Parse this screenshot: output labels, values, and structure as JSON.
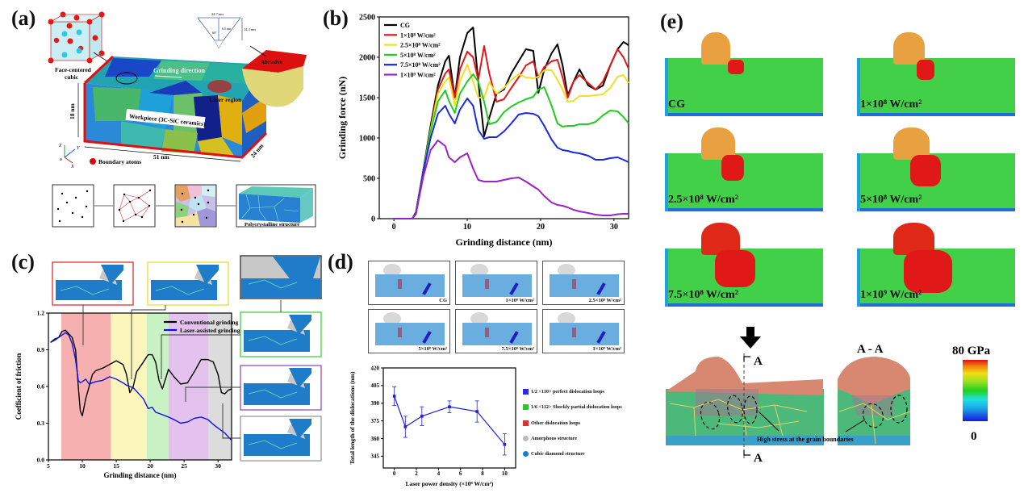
{
  "panels": {
    "a": {
      "label": "(a)",
      "fcc_label_1": "Face-centered",
      "fcc_label_2": "cubic",
      "grinding_direction": "Grinding direction",
      "laser_region": "Laser region",
      "abrasive": "Abrasive",
      "workpiece": "Workpiece (3C-SiC ceramics)",
      "dim_height": "18 nm",
      "dim_length": "51 nm",
      "dim_depth": "24 nm",
      "boundary_atoms": "Boundary atoms",
      "axes": {
        "z": "Z",
        "y": "Y",
        "x": "X",
        "o": "o"
      },
      "abrasive_dims": {
        "width": "24.7 nm",
        "height": "14.3 nm",
        "radius": "6.5 nm",
        "angle": "60°"
      },
      "polycrystalline": "Polycrystalline structure"
    },
    "b": {
      "label": "(b)"
    },
    "c": {
      "label": "(c)"
    },
    "d": {
      "label": "(d)",
      "thumbnails": [
        "CG",
        "1×10⁸ W/cm²",
        "2.5×10⁸ W/cm²",
        "5×10⁸ W/cm²",
        "7.5×10⁸ W/cm²",
        "1×10⁹ W/cm²"
      ],
      "legend": [
        {
          "label": "1/2 <110> perfect dislocation loops",
          "color": "#2a2ae0"
        },
        {
          "label": "1/6 <112> Shockly partial dislocation loops",
          "color": "#22cc22"
        },
        {
          "label": "Other dislocation loops",
          "color": "#e03030"
        },
        {
          "label": "Amorphous structure",
          "color": "#bbbbbb"
        },
        {
          "label": "Cubic diamond structure",
          "color": "#1a7fd0"
        }
      ]
    },
    "e": {
      "label": "(e)",
      "maps": [
        "CG",
        "1×10⁸ W/cm²",
        "2.5×10⁸ W/cm²",
        "5×10⁸ W/cm²",
        "7.5×10⁸ W/cm²",
        "1×10⁹ W/cm²"
      ],
      "section_label": "A",
      "section_title": "A - A",
      "annotation": "High stress at the grain boundaries",
      "colorbar_max": "80 GPa",
      "colorbar_min": "0"
    }
  },
  "chart_data": [
    {
      "id": "b",
      "type": "line",
      "title": "",
      "xlabel": "Grinding distance (nm)",
      "ylabel": "Grinding force (nN)",
      "xlim": [
        -2,
        32
      ],
      "ylim": [
        0,
        2500
      ],
      "xticks": [
        0,
        10,
        20,
        30
      ],
      "yticks": [
        0,
        500,
        1000,
        1500,
        2000,
        2500
      ],
      "legend_position": "top-left",
      "x": [
        0,
        2.5,
        3,
        4,
        5,
        6,
        7,
        7.5,
        8.3,
        9,
        10,
        10.8,
        11.5,
        12.3,
        13,
        14,
        15,
        16,
        17,
        18,
        19,
        19.7,
        20.5,
        21.5,
        22.3,
        23,
        23.7,
        24.5,
        25.3,
        26.5,
        27.5,
        28.5,
        29.5,
        30.5,
        31.3,
        32
      ],
      "series": [
        {
          "name": "CG",
          "color": "#000000",
          "values": [
            0,
            0,
            80,
            600,
            1150,
            1650,
            1950,
            2020,
            1500,
            2000,
            2300,
            2370,
            1700,
            1020,
            1250,
            1550,
            1600,
            1800,
            1950,
            2100,
            2080,
            1560,
            1850,
            2050,
            2160,
            1900,
            1530,
            1700,
            1850,
            1650,
            1600,
            1650,
            1900,
            2100,
            2190,
            2150
          ]
        },
        {
          "name": "1×10⁸ W/cm²",
          "color": "#e01818",
          "values": [
            0,
            0,
            60,
            580,
            1100,
            1600,
            1800,
            1850,
            1500,
            1850,
            2070,
            2000,
            1720,
            2140,
            1800,
            1450,
            1480,
            1620,
            1750,
            1900,
            1950,
            1750,
            1880,
            1950,
            1970,
            1750,
            1500,
            1700,
            1780,
            1680,
            1600,
            1700,
            1900,
            2100,
            2000,
            1860
          ]
        },
        {
          "name": "2.5×10⁸ W/cm²",
          "color": "#f0e020",
          "values": [
            0,
            0,
            60,
            580,
            1100,
            1550,
            1700,
            1750,
            1400,
            1700,
            1910,
            1700,
            1500,
            1500,
            1690,
            1550,
            1620,
            1720,
            1790,
            1750,
            1740,
            1760,
            1840,
            1840,
            1720,
            1600,
            1450,
            1460,
            1520,
            1520,
            1530,
            1540,
            1620,
            1760,
            1780,
            1680
          ]
        },
        {
          "name": "5×10⁸ W/cm²",
          "color": "#22cc22",
          "values": [
            0,
            0,
            60,
            580,
            1080,
            1450,
            1590,
            1460,
            1310,
            1550,
            1700,
            1790,
            1700,
            1450,
            1170,
            1200,
            1320,
            1390,
            1440,
            1480,
            1510,
            1600,
            1630,
            1400,
            1180,
            1140,
            1150,
            1150,
            1170,
            1170,
            1200,
            1280,
            1340,
            1330,
            1260,
            1180
          ]
        },
        {
          "name": "7.5×10⁸ W/cm²",
          "color": "#1a2ae0",
          "values": [
            0,
            0,
            60,
            580,
            1000,
            1300,
            1400,
            1300,
            1180,
            1350,
            1490,
            1400,
            1100,
            990,
            1010,
            1010,
            1080,
            1180,
            1290,
            1310,
            1300,
            1270,
            1150,
            980,
            880,
            850,
            840,
            820,
            810,
            780,
            730,
            730,
            750,
            760,
            730,
            700
          ]
        },
        {
          "name": "1×10⁹ W/cm²",
          "color": "#9a22c8",
          "values": [
            0,
            0,
            60,
            520,
            850,
            970,
            900,
            760,
            700,
            760,
            810,
            620,
            480,
            460,
            460,
            460,
            480,
            500,
            510,
            460,
            400,
            360,
            280,
            200,
            170,
            160,
            140,
            110,
            90,
            70,
            50,
            40,
            40,
            55,
            60,
            60
          ]
        }
      ]
    },
    {
      "id": "c",
      "type": "line",
      "title": "",
      "xlabel": "Grinding distance (nm)",
      "ylabel": "Coefficient of friction",
      "xlim": [
        5,
        32
      ],
      "ylim": [
        0.0,
        1.2
      ],
      "xticks": [
        5,
        10,
        15,
        20,
        25,
        30
      ],
      "yticks": [
        0.0,
        0.3,
        0.6,
        0.9,
        1.2
      ],
      "ytick_labels": [
        "0.0",
        "0.3",
        "0.6",
        "0.9",
        "1.2"
      ],
      "legend_position": "top-right",
      "bands": [
        {
          "from": 6.9,
          "to": 14.2,
          "color": "#f7b0b0"
        },
        {
          "from": 14.2,
          "to": 19.5,
          "color": "#fbf6bc"
        },
        {
          "from": 19.5,
          "to": 22.7,
          "color": "#c8f2c4"
        },
        {
          "from": 22.7,
          "to": 28.6,
          "color": "#e3c3ee"
        },
        {
          "from": 28.6,
          "to": 32,
          "color": "#dcdcdc"
        }
      ],
      "x": [
        5.3,
        6,
        6.5,
        7,
        7.5,
        8,
        8.5,
        9,
        9.4,
        9.7,
        10,
        10.5,
        11,
        11.5,
        12,
        13,
        14,
        15,
        16,
        16.5,
        17,
        17.5,
        18,
        19,
        19.7,
        20.3,
        20.8,
        21.3,
        21.8,
        22.7,
        23.5,
        24.5,
        25.5,
        26.5,
        27.5,
        28.5,
        29.3,
        30,
        30.5,
        31,
        31.5,
        32
      ],
      "series": [
        {
          "name": "Conventional grinding",
          "color": "#000000",
          "values": [
            0.96,
            0.99,
            1.0,
            1.05,
            1.06,
            1.03,
            1.0,
            0.9,
            0.6,
            0.4,
            0.36,
            0.5,
            0.6,
            0.7,
            0.73,
            0.75,
            0.78,
            0.81,
            0.78,
            0.7,
            0.55,
            0.6,
            0.72,
            0.8,
            0.86,
            0.86,
            0.8,
            0.65,
            0.58,
            0.74,
            0.68,
            0.62,
            0.63,
            0.72,
            0.82,
            0.82,
            0.8,
            0.7,
            0.55,
            0.54,
            0.57,
            0.58
          ]
        },
        {
          "name": "Laser-assisted grinding",
          "color": "#1010e0",
          "values": [
            0.96,
            0.98,
            1.0,
            1.02,
            1.04,
            1.02,
            0.95,
            0.82,
            0.65,
            0.63,
            0.64,
            0.66,
            0.62,
            0.63,
            0.64,
            0.65,
            0.68,
            0.66,
            0.63,
            0.61,
            0.6,
            0.59,
            0.56,
            0.5,
            0.42,
            0.43,
            0.39,
            0.38,
            0.37,
            0.35,
            0.33,
            0.3,
            0.31,
            0.34,
            0.35,
            0.33,
            0.29,
            0.26,
            0.24,
            0.22,
            0.19,
            0.16
          ]
        }
      ]
    },
    {
      "id": "d",
      "type": "line",
      "title": "",
      "xlabel": "Laser power density (×10⁸ W/cm²)",
      "ylabel": "Total length of the dislocations (nm)",
      "xlim": [
        -1,
        11
      ],
      "ylim": [
        335,
        420
      ],
      "xticks": [
        0,
        2,
        4,
        6,
        8,
        10
      ],
      "yticks": [
        345,
        360,
        375,
        390,
        405,
        420
      ],
      "x": [
        0,
        1,
        2.5,
        5,
        7.5,
        10
      ],
      "series": [
        {
          "name": "Total dislocation length",
          "color": "#2020d8",
          "values": [
            396,
            370,
            379,
            387,
            383,
            355
          ],
          "errors": [
            8,
            9,
            8,
            5,
            9,
            9
          ]
        }
      ]
    }
  ]
}
